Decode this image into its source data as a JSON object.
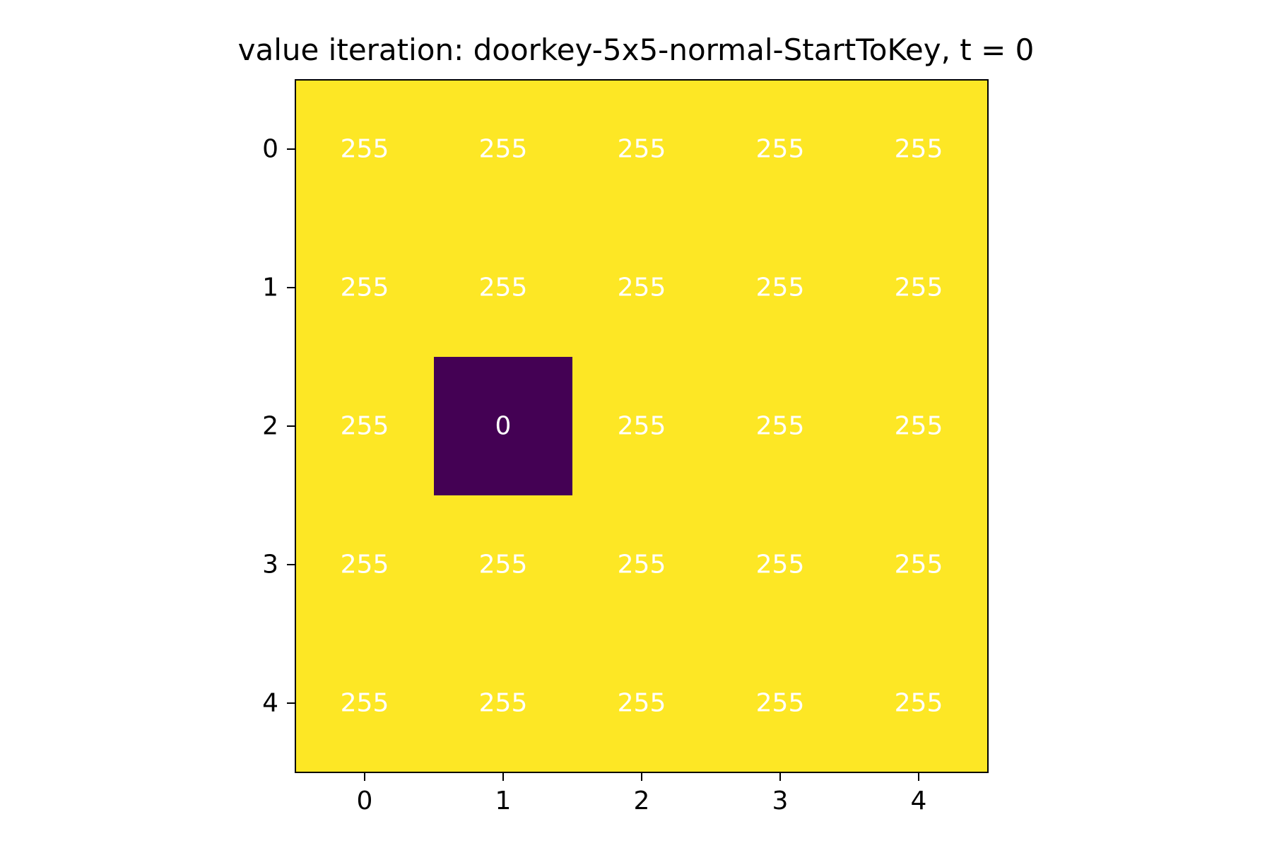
{
  "chart_data": {
    "type": "heatmap",
    "title": "value iteration: doorkey-5x5-normal-StartToKey, t = 0",
    "x_ticks": [
      "0",
      "1",
      "2",
      "3",
      "4"
    ],
    "y_ticks": [
      "0",
      "1",
      "2",
      "3",
      "4"
    ],
    "values": [
      [
        255,
        255,
        255,
        255,
        255
      ],
      [
        255,
        255,
        255,
        255,
        255
      ],
      [
        255,
        0,
        255,
        255,
        255
      ],
      [
        255,
        255,
        255,
        255,
        255
      ],
      [
        255,
        255,
        255,
        255,
        255
      ]
    ],
    "value_range": [
      0,
      255
    ],
    "colormap": {
      "low_color": "#440154",
      "high_color": "#fde725"
    },
    "cell_label_color": "#ffffff",
    "xlabel": "",
    "ylabel": ""
  }
}
